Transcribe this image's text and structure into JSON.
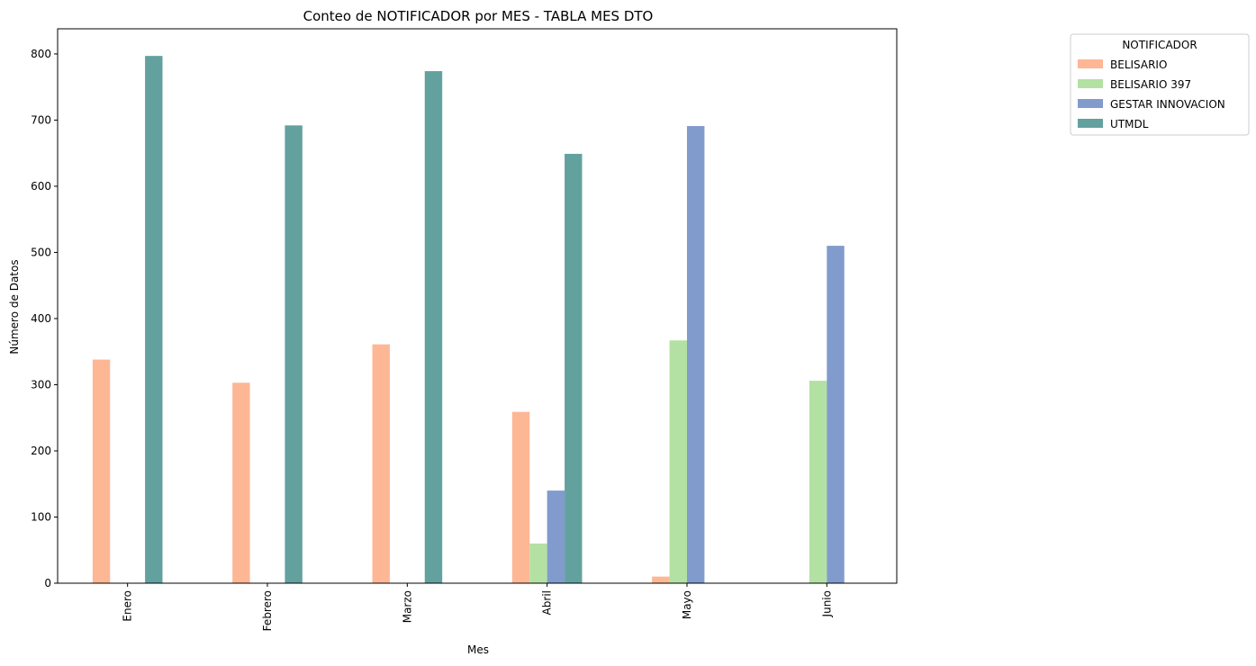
{
  "chart_data": {
    "type": "bar",
    "title": "Conteo de NOTIFICADOR por MES - TABLA MES DTO",
    "xlabel": "Mes",
    "ylabel": "Número de Datos",
    "ylim": [
      0,
      838
    ],
    "yticks": [
      0,
      100,
      200,
      300,
      400,
      500,
      600,
      700,
      800
    ],
    "grid": false,
    "legend_position": "outside-top-right",
    "legend_title": "NOTIFICADOR",
    "categories": [
      "Enero",
      "Febrero",
      "Marzo",
      "Abril",
      "Mayo",
      "Junio"
    ],
    "series": [
      {
        "name": "BELISARIO",
        "color": "#fdb795",
        "values": [
          338,
          303,
          361,
          259,
          10,
          0
        ]
      },
      {
        "name": "BELISARIO 397",
        "color": "#b3e1a3",
        "values": [
          0,
          0,
          0,
          60,
          367,
          306
        ]
      },
      {
        "name": "GESTAR INNOVACION",
        "color": "#819bcd",
        "values": [
          0,
          0,
          0,
          140,
          691,
          510
        ]
      },
      {
        "name": "UTMDL",
        "color": "#63a19f",
        "values": [
          797,
          692,
          774,
          649,
          0,
          0
        ]
      }
    ]
  }
}
